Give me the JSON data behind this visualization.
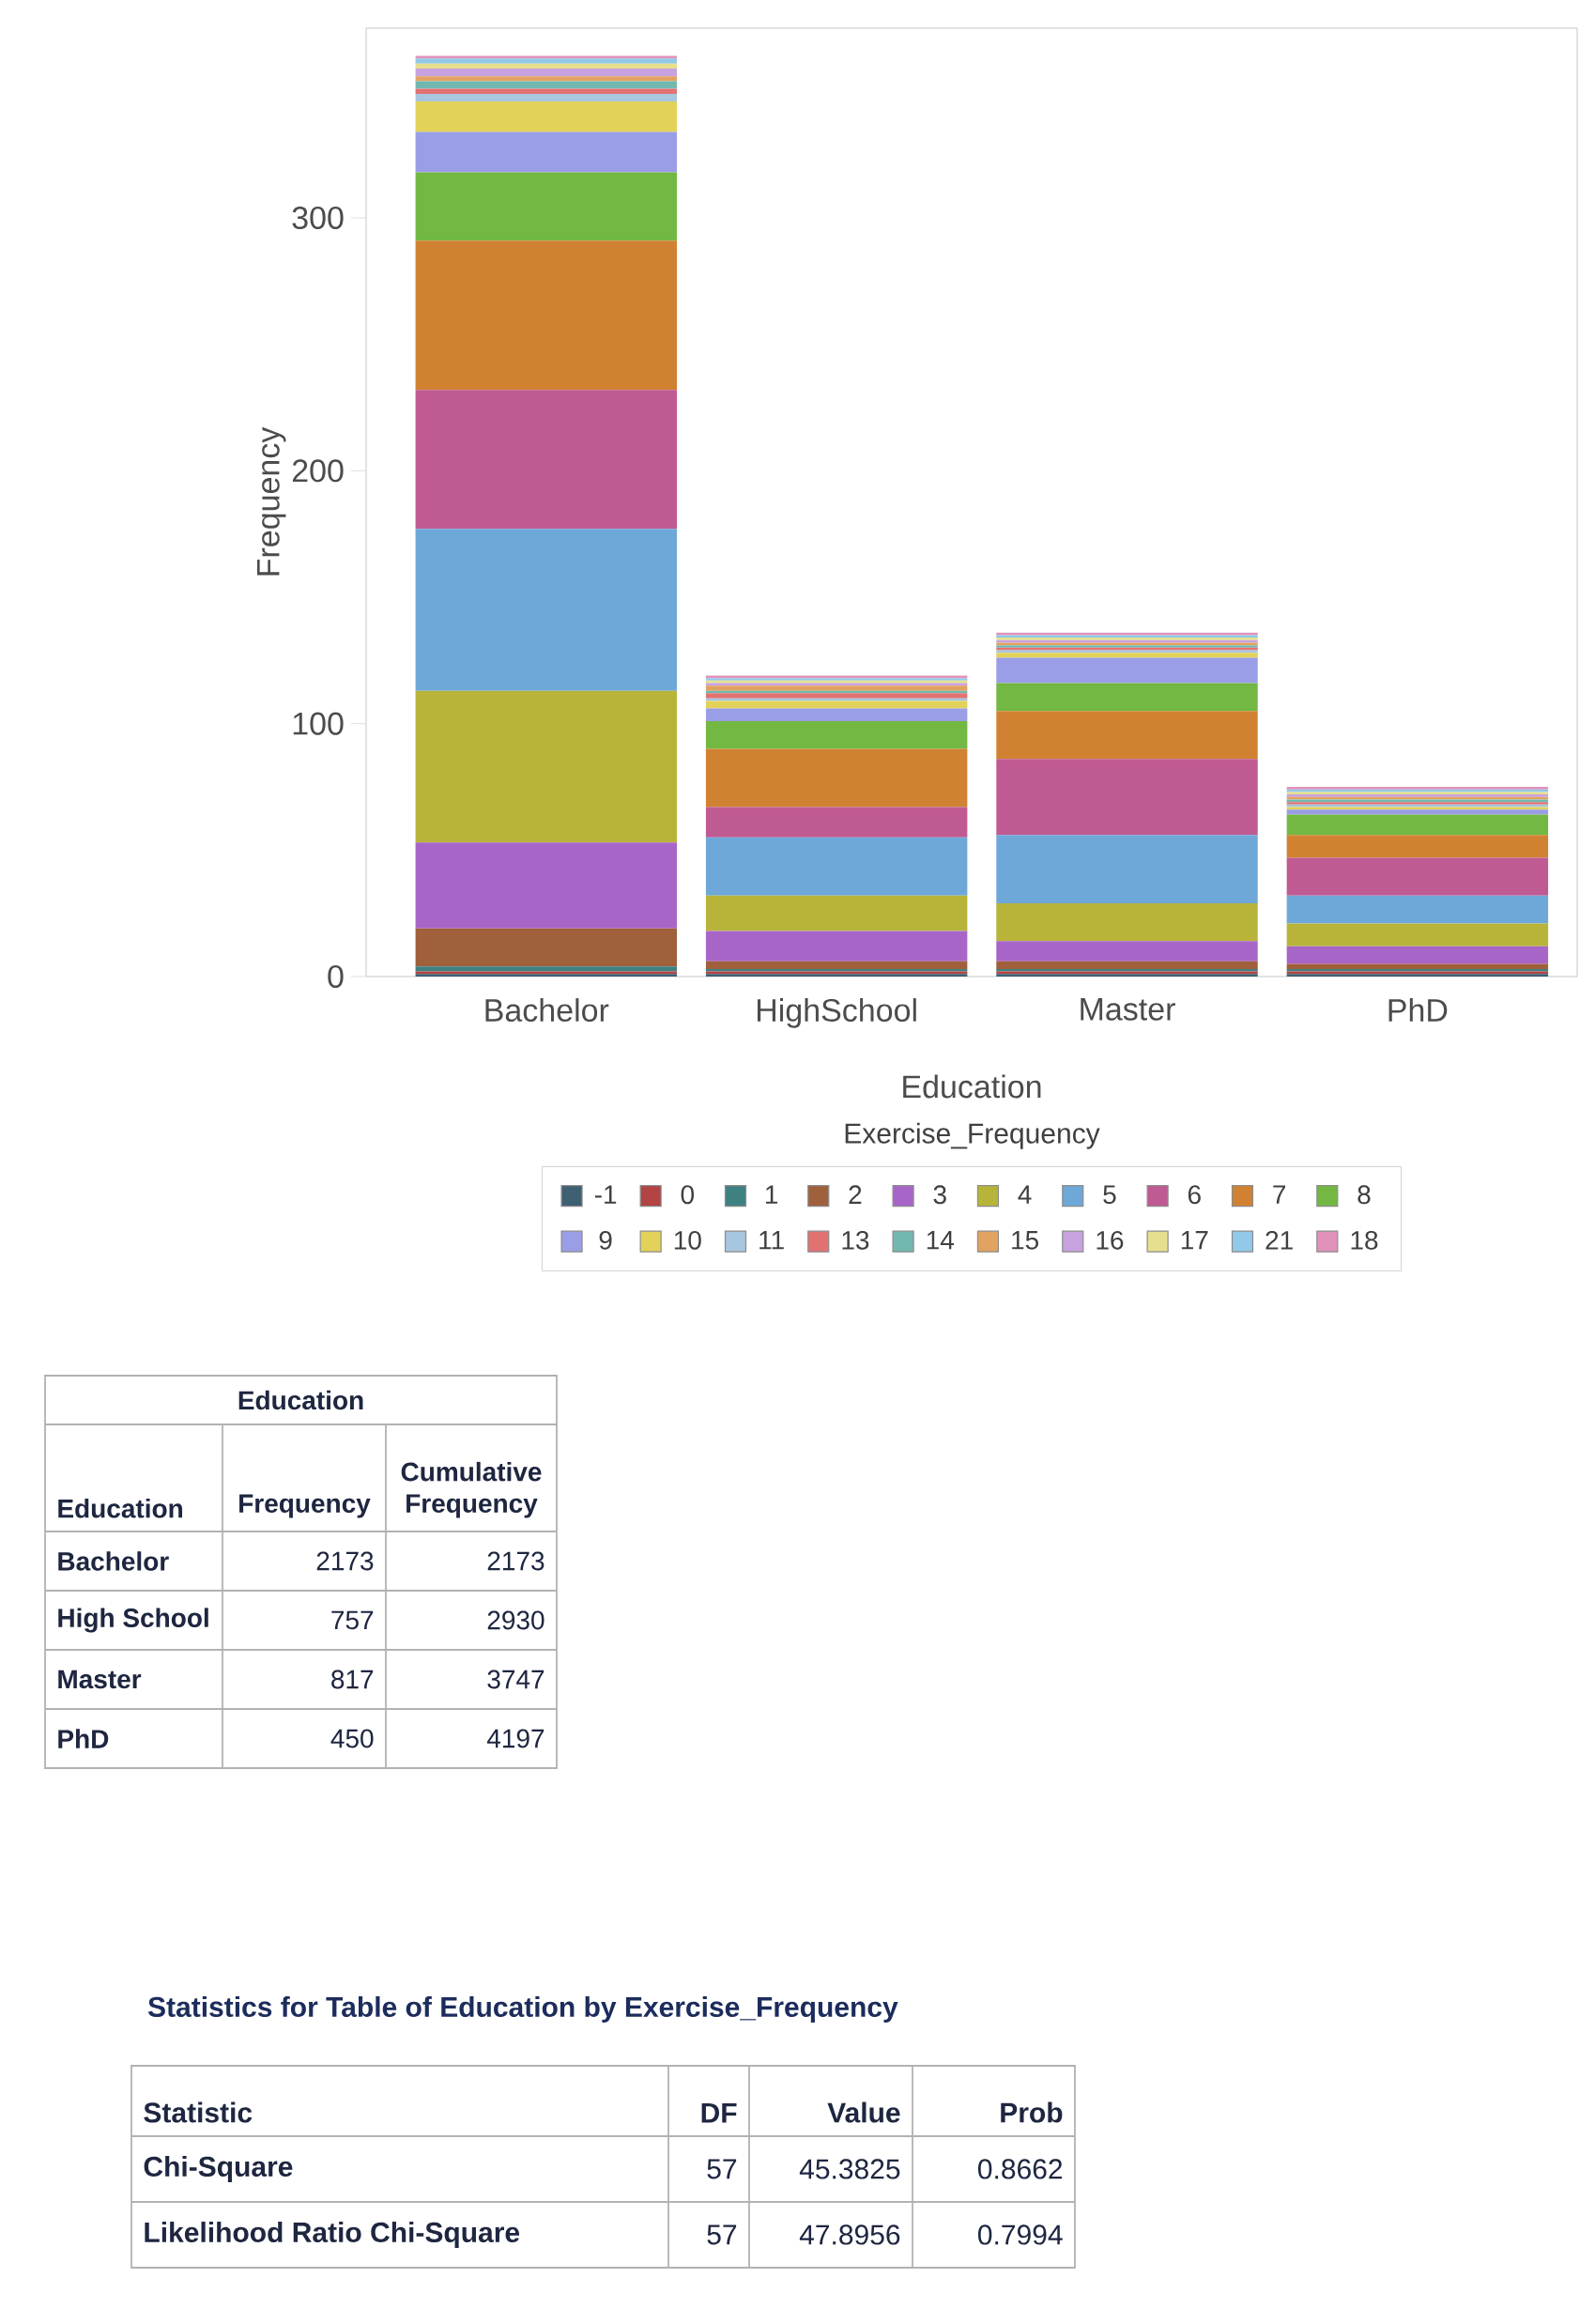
{
  "chart_data": [
    {
      "type": "bar",
      "stacked": true,
      "categories": [
        "Bachelor",
        "HighSchool",
        "Master",
        "PhD"
      ],
      "xlabel": "Education",
      "ylabel": "Frequency",
      "legend_title": "Exercise_Frequency",
      "legend": "bottom",
      "ylim": [
        0,
        375
      ],
      "yticks": [
        0,
        100,
        200,
        300
      ],
      "series": [
        {
          "name": "-1",
          "color": "#3f5f72",
          "values": [
            1,
            1,
            1,
            1
          ]
        },
        {
          "name": "0",
          "color": "#b24444",
          "values": [
            1,
            1,
            1,
            1
          ]
        },
        {
          "name": "1",
          "color": "#3f8082",
          "values": [
            2,
            1,
            1,
            1
          ]
        },
        {
          "name": "2",
          "color": "#a0603c",
          "values": [
            15,
            3,
            3,
            2
          ]
        },
        {
          "name": "3",
          "color": "#a865c8",
          "values": [
            34,
            12,
            8,
            7
          ]
        },
        {
          "name": "4",
          "color": "#b8b43a",
          "values": [
            60,
            14,
            15,
            9
          ]
        },
        {
          "name": "5",
          "color": "#6ea8d8",
          "values": [
            64,
            23,
            27,
            11
          ]
        },
        {
          "name": "6",
          "color": "#c05a92",
          "values": [
            55,
            12,
            30,
            15
          ]
        },
        {
          "name": "7",
          "color": "#d08232",
          "values": [
            59,
            23,
            19,
            9
          ]
        },
        {
          "name": "8",
          "color": "#72b842",
          "values": [
            27,
            11,
            11,
            8
          ]
        },
        {
          "name": "9",
          "color": "#9a9ee6",
          "values": [
            16,
            5,
            10,
            2
          ]
        },
        {
          "name": "10",
          "color": "#e2d25a",
          "values": [
            12,
            3,
            2,
            1
          ]
        },
        {
          "name": "11",
          "color": "#a8c6de",
          "values": [
            3,
            1,
            1,
            1
          ]
        },
        {
          "name": "13",
          "color": "#e27272",
          "values": [
            2,
            2,
            1,
            1
          ]
        },
        {
          "name": "14",
          "color": "#72b8b0",
          "values": [
            3,
            1,
            1,
            1
          ]
        },
        {
          "name": "15",
          "color": "#e2a262",
          "values": [
            2,
            2,
            1,
            1
          ]
        },
        {
          "name": "16",
          "color": "#c8a2e0",
          "values": [
            3,
            1,
            1,
            1
          ]
        },
        {
          "name": "17",
          "color": "#e6e08e",
          "values": [
            2,
            1,
            1,
            1
          ]
        },
        {
          "name": "21",
          "color": "#92c8e8",
          "values": [
            2,
            1,
            1,
            1
          ]
        },
        {
          "name": "18",
          "color": "#e292ba",
          "values": [
            1,
            1,
            1,
            1
          ]
        }
      ]
    },
    {
      "type": "other",
      "title": "Education",
      "ylabel": "Education",
      "categories": [
        "Bachelor",
        "High School",
        "Master",
        "PhD"
      ],
      "series": [
        {
          "name": "Frequency",
          "values": [
            2173,
            757,
            817,
            450
          ]
        },
        {
          "name": "Cumulative Frequency",
          "values": [
            2173,
            2930,
            3747,
            4197
          ]
        }
      ],
      "data_labels": true
    },
    {
      "type": "other",
      "title": "Statistics for Table of Education by Exercise_Frequency",
      "ylabel": "Statistic",
      "categories": [
        "Chi-Square",
        "Likelihood Ratio Chi-Square"
      ],
      "series": [
        {
          "name": "DF",
          "values": [
            57,
            57
          ]
        },
        {
          "name": "Value",
          "values": [
            45.3825,
            47.8956
          ]
        },
        {
          "name": "Prob",
          "values": [
            0.8662,
            0.7994
          ]
        }
      ],
      "data_labels": true
    }
  ]
}
